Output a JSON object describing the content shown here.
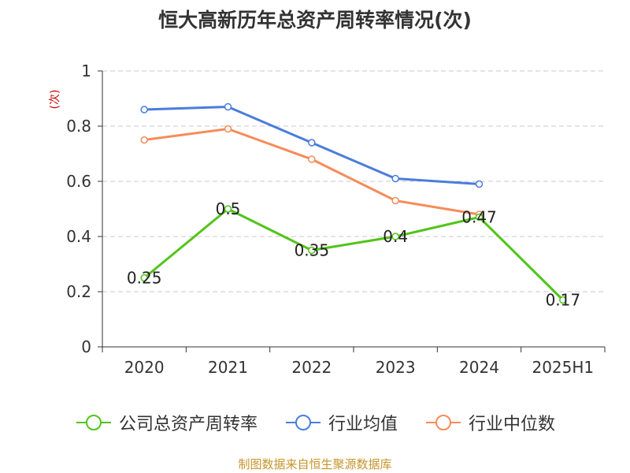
{
  "chart_data": {
    "type": "line",
    "title": "恒大高新历年总资产周转率情况(次)",
    "ylabel": "(次)",
    "categories": [
      "2020",
      "2021",
      "2022",
      "2023",
      "2024",
      "2025H1"
    ],
    "ylim": [
      0,
      1
    ],
    "yticks": [
      "0",
      "0.2",
      "0.4",
      "0.6",
      "0.8",
      "1"
    ],
    "grid": true,
    "legend_position": "bottom",
    "series": [
      {
        "name": "公司总资产周转率",
        "color": "#52c41a",
        "values": [
          0.25,
          0.5,
          0.35,
          0.4,
          0.47,
          0.17
        ],
        "labels": [
          "0.25",
          "0.5",
          "0.35",
          "0.4",
          "0.47",
          "0.17"
        ]
      },
      {
        "name": "行业均值",
        "color": "#4a7ddb",
        "values": [
          0.86,
          0.87,
          0.74,
          0.61,
          0.59,
          null
        ]
      },
      {
        "name": "行业中位数",
        "color": "#f58c5a",
        "values": [
          0.75,
          0.79,
          0.68,
          0.53,
          0.48,
          null
        ]
      }
    ]
  },
  "footer": {
    "source": "制图数据来自恒生聚源数据库"
  }
}
